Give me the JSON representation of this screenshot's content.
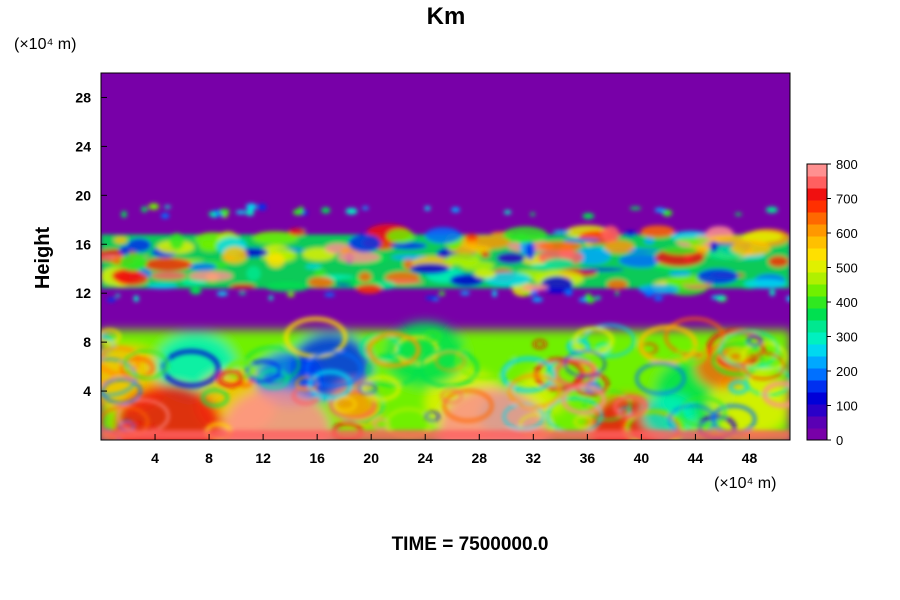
{
  "chart_data": {
    "type": "heatmap",
    "title": "Km",
    "ylabel": "Height",
    "x_unit": "(×10⁴ m)",
    "y_unit": "(×10⁴ m)",
    "footer": "TIME = 7500000.0",
    "xlim": [
      0,
      51
    ],
    "ylim": [
      0,
      30
    ],
    "x_ticks": [
      4,
      8,
      12,
      16,
      20,
      24,
      28,
      32,
      36,
      40,
      44,
      48
    ],
    "y_ticks": [
      4,
      8,
      12,
      16,
      20,
      24,
      28
    ],
    "colorbar": {
      "min": 0,
      "max": 800,
      "ticks": [
        0,
        100,
        200,
        300,
        400,
        500,
        600,
        700,
        800
      ],
      "colors": [
        "#7800a8",
        "#5a00b4",
        "#2a00c8",
        "#0000d8",
        "#0030f0",
        "#0070ff",
        "#00a8ff",
        "#00d8f0",
        "#00f0c0",
        "#00e890",
        "#00e050",
        "#30e820",
        "#70f000",
        "#b0f000",
        "#e0f000",
        "#ffe000",
        "#ffc000",
        "#ff9800",
        "#ff6800",
        "#ff3000",
        "#f01010",
        "#ff6060",
        "#ff9090"
      ]
    },
    "background_value": 0,
    "features": {
      "lower_band_top_km": 9,
      "upper_band_range": [
        12,
        18
      ]
    }
  }
}
